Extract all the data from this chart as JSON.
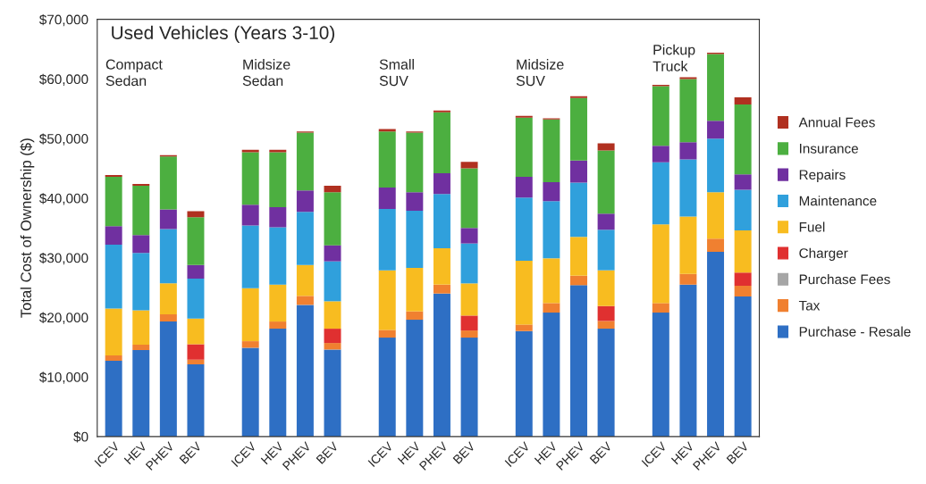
{
  "chart_data": {
    "type": "bar",
    "stacked": true,
    "title": "Used Vehicles (Years 3-10)",
    "ylabel": "Total Cost of Ownership ($)",
    "annotations": [
      "Compact\nSedan",
      "Midsize\nSedan",
      "Small\nSUV",
      "Midsize\nSUV",
      "Pickup\nTruck"
    ],
    "categories": [
      "ICEV",
      "HEV",
      "PHEV",
      "BEV",
      null,
      "ICEV",
      "HEV",
      "PHEV",
      "BEV",
      null,
      "ICEV",
      "HEV",
      "PHEV",
      "BEV",
      null,
      "ICEV",
      "HEV",
      "PHEV",
      "BEV",
      null,
      "ICEV",
      "HEV",
      "PHEV",
      "BEV"
    ],
    "series": [
      {
        "name": "Purchase - Resale",
        "color": "#2e6fc4",
        "values": [
          12700,
          14500,
          19300,
          12100,
          null,
          14900,
          18100,
          22100,
          14600,
          null,
          16600,
          19600,
          24000,
          16600,
          null,
          17700,
          20800,
          25400,
          18100,
          null,
          20800,
          25500,
          31000,
          23500
        ]
      },
      {
        "name": "Tax",
        "color": "#f08030",
        "values": [
          900,
          900,
          1200,
          800,
          null,
          1100,
          1200,
          1500,
          1100,
          null,
          1300,
          1400,
          1500,
          1200,
          null,
          1100,
          1600,
          1600,
          1300,
          null,
          1600,
          1800,
          2200,
          1800
        ]
      },
      {
        "name": "Purchase Fees",
        "color": "#a6a6a6",
        "values": [
          null,
          null,
          null,
          null,
          null,
          null,
          null,
          null,
          null,
          null,
          null,
          null,
          null,
          null,
          null,
          null,
          null,
          null,
          null,
          null,
          null,
          null,
          null,
          null
        ]
      },
      {
        "name": "Charger",
        "color": "#e03030",
        "values": [
          null,
          null,
          null,
          2600,
          null,
          null,
          null,
          null,
          2400,
          null,
          null,
          null,
          null,
          2500,
          null,
          null,
          null,
          null,
          2500,
          null,
          null,
          null,
          null,
          2200
        ]
      },
      {
        "name": "Fuel",
        "color": "#f8bc20",
        "values": [
          7900,
          5800,
          5200,
          4300,
          null,
          8900,
          6200,
          5200,
          4600,
          null,
          10000,
          7300,
          6100,
          5400,
          null,
          10700,
          7500,
          6500,
          6000,
          null,
          13200,
          9600,
          7800,
          7100
        ]
      },
      {
        "name": "Maintenance",
        "color": "#30a0dc",
        "values": [
          10700,
          9600,
          9100,
          6700,
          null,
          10500,
          9600,
          8900,
          6700,
          null,
          10300,
          9600,
          9100,
          6700,
          null,
          10600,
          9600,
          9100,
          6800,
          null,
          10400,
          9600,
          9000,
          6800
        ]
      },
      {
        "name": "Repairs",
        "color": "#7030a0",
        "values": [
          3100,
          3000,
          3300,
          2300,
          null,
          3500,
          3400,
          3600,
          2700,
          null,
          3600,
          3100,
          3500,
          2600,
          null,
          3500,
          3200,
          3700,
          2700,
          null,
          2800,
          2900,
          3000,
          2600
        ]
      },
      {
        "name": "Insurance",
        "color": "#4caf40",
        "values": [
          8300,
          8300,
          8900,
          8000,
          null,
          8800,
          9200,
          9700,
          8900,
          null,
          9400,
          10000,
          10200,
          10000,
          null,
          9900,
          10500,
          10500,
          10600,
          null,
          10000,
          10600,
          11200,
          11700
        ]
      },
      {
        "name": "Annual Fees",
        "color": "#b03020",
        "values": [
          300,
          300,
          200,
          1000,
          null,
          400,
          400,
          200,
          1100,
          null,
          400,
          200,
          300,
          1100,
          null,
          300,
          200,
          300,
          1200,
          null,
          200,
          300,
          200,
          1200
        ]
      }
    ],
    "ylim": [
      0,
      70000
    ],
    "yticks": [
      {
        "value": 0,
        "label": "$0"
      },
      {
        "value": 10000,
        "label": "$10,000"
      },
      {
        "value": 20000,
        "label": "$20,000"
      },
      {
        "value": 30000,
        "label": "$30,000"
      },
      {
        "value": 40000,
        "label": "$40,000"
      },
      {
        "value": 50000,
        "label": "$50,000"
      },
      {
        "value": 60000,
        "label": "$60,000"
      },
      {
        "value": 70000,
        "label": "$70,000"
      }
    ],
    "legend": "right"
  }
}
